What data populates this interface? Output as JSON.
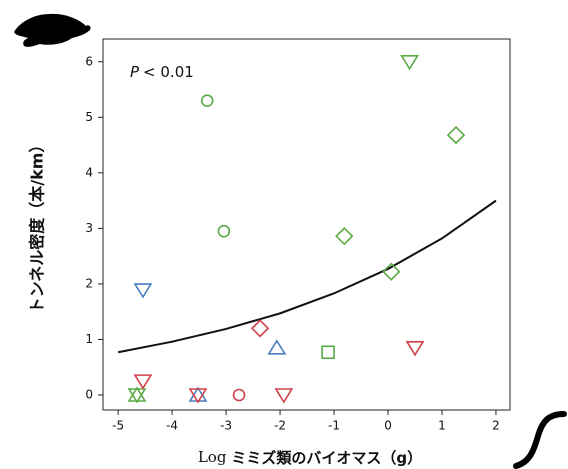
{
  "chart_data": {
    "type": "scatter",
    "annotation": {
      "variable": "P",
      "text": "< 0.01"
    },
    "xlabel": {
      "prefix": "Log",
      "text": "ミミズ類のバイオマス（g）"
    },
    "ylabel": "トンネル密度（本/km）",
    "xlim": [
      -5.28,
      2.26
    ],
    "ylim": [
      -0.27,
      6.41
    ],
    "xticks": [
      -5,
      -4,
      -3,
      -2,
      -1,
      0,
      1,
      2
    ],
    "yticks": [
      0,
      1,
      2,
      3,
      4,
      5,
      6
    ],
    "series": [
      {
        "color": "#5aaa46",
        "marker": "triangle-down",
        "x": [
          0.4,
          -4.65
        ],
        "y": [
          6.0,
          0
        ]
      },
      {
        "color": "#5aaa46",
        "marker": "triangle-up",
        "x": [
          -4.65
        ],
        "y": [
          0
        ]
      },
      {
        "color": "#5aaa46",
        "marker": "circle",
        "x": [
          -3.35,
          -3.04
        ],
        "y": [
          5.3,
          2.95
        ]
      },
      {
        "color": "#5aaa46",
        "marker": "diamond",
        "x": [
          1.26,
          -0.81,
          0.06
        ],
        "y": [
          4.68,
          2.86,
          2.22
        ]
      },
      {
        "color": "#5aaa46",
        "marker": "square",
        "x": [
          -1.11
        ],
        "y": [
          0.77
        ]
      },
      {
        "color": "#4a7fc0",
        "marker": "triangle-down",
        "x": [
          -4.54
        ],
        "y": [
          1.89
        ]
      },
      {
        "color": "#4a7fc0",
        "marker": "triangle-up",
        "x": [
          -2.06,
          -3.52
        ],
        "y": [
          0.85,
          0
        ]
      },
      {
        "color": "#d0404a",
        "marker": "diamond",
        "x": [
          -2.37
        ],
        "y": [
          1.2
        ]
      },
      {
        "color": "#d0404a",
        "marker": "triangle-down",
        "x": [
          0.5,
          -4.54,
          -3.52,
          -1.93
        ],
        "y": [
          0.85,
          0.25,
          0,
          0
        ]
      },
      {
        "color": "#d0404a",
        "marker": "circle",
        "x": [
          -2.76
        ],
        "y": [
          0
        ]
      }
    ],
    "fit": {
      "color": "#111111",
      "x": [
        -5,
        -4,
        -3,
        -2,
        -1,
        0,
        1,
        2
      ],
      "y": [
        0.77,
        0.96,
        1.19,
        1.47,
        1.83,
        2.27,
        2.82,
        3.5
      ]
    }
  }
}
